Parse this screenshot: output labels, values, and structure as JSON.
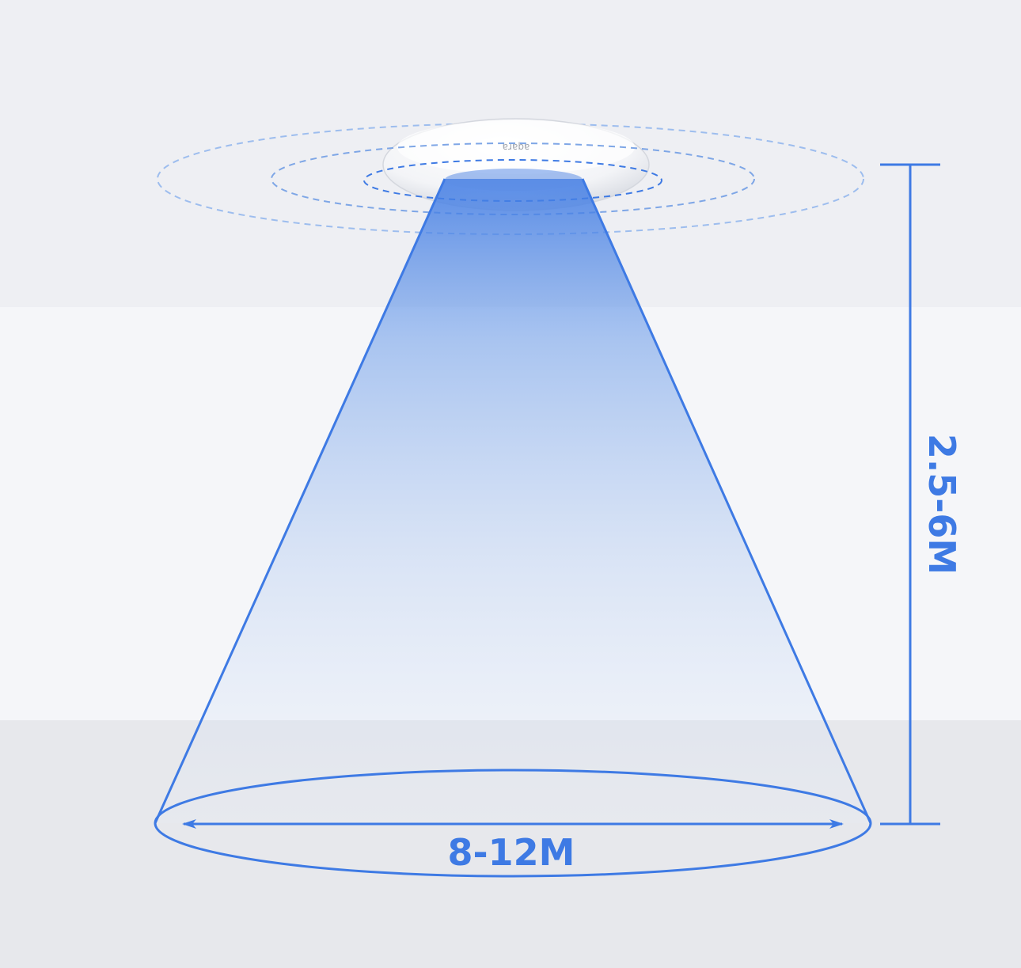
{
  "device": {
    "logo_text": "aqara"
  },
  "dimensions": {
    "height_label": "2.5-6M",
    "diameter_label": "8-12M"
  },
  "colors": {
    "accent": "#3e7ae4",
    "wave": "#9dbdee",
    "ceiling_bg": "#eeeff3",
    "wall_bg": "#f5f6f9",
    "floor_bg": "#e7e8ec"
  }
}
